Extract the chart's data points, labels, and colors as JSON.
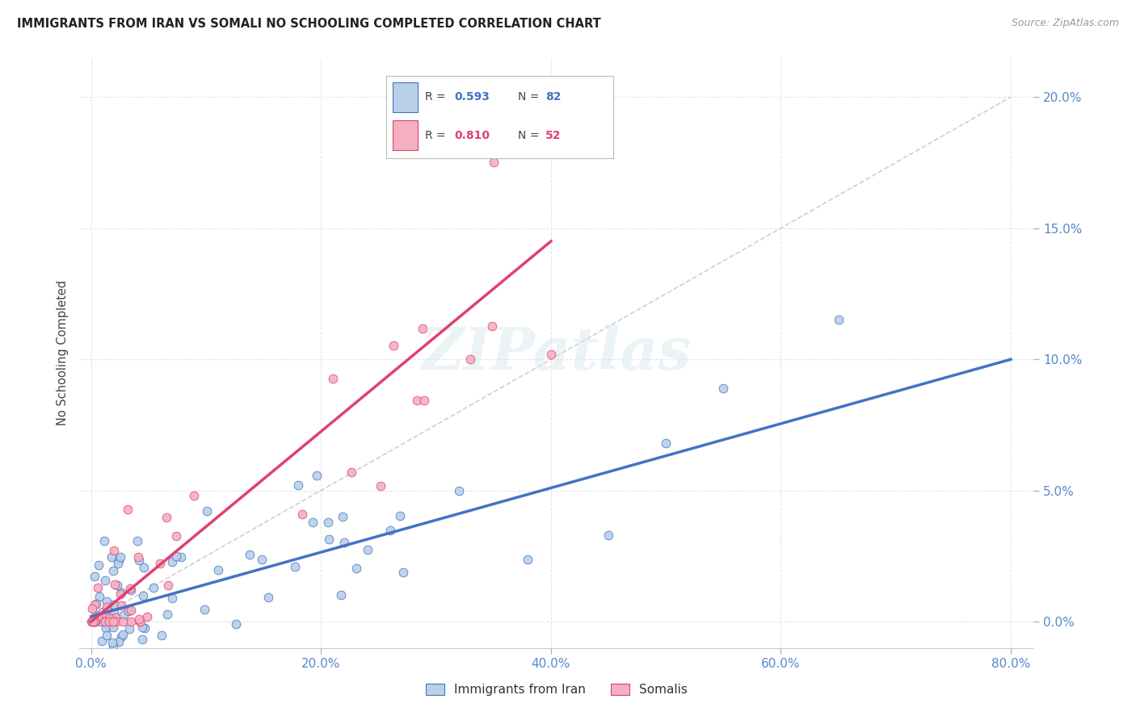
{
  "title": "IMMIGRANTS FROM IRAN VS SOMALI NO SCHOOLING COMPLETED CORRELATION CHART",
  "source": "Source: ZipAtlas.com",
  "ylabel": "No Schooling Completed",
  "ytick_values": [
    0.0,
    5.0,
    10.0,
    15.0,
    20.0
  ],
  "xtick_values": [
    0.0,
    20.0,
    40.0,
    60.0,
    80.0
  ],
  "xlim": [
    -1.0,
    82.0
  ],
  "ylim": [
    -1.0,
    21.5
  ],
  "iran_R": 0.593,
  "iran_N": 82,
  "somali_R": 0.81,
  "somali_N": 52,
  "iran_color": "#b8d0e8",
  "somali_color": "#f4b0c0",
  "iran_line_color": "#4472c4",
  "somali_line_color": "#e04070",
  "diagonal_color": "#c8c8c8",
  "background_color": "#ffffff",
  "iran_line_x0": 0.0,
  "iran_line_y0": 0.2,
  "iran_line_x1": 80.0,
  "iran_line_y1": 10.0,
  "somali_line_x0": 0.0,
  "somali_line_y0": 0.0,
  "somali_line_x1": 40.0,
  "somali_line_y1": 14.5
}
